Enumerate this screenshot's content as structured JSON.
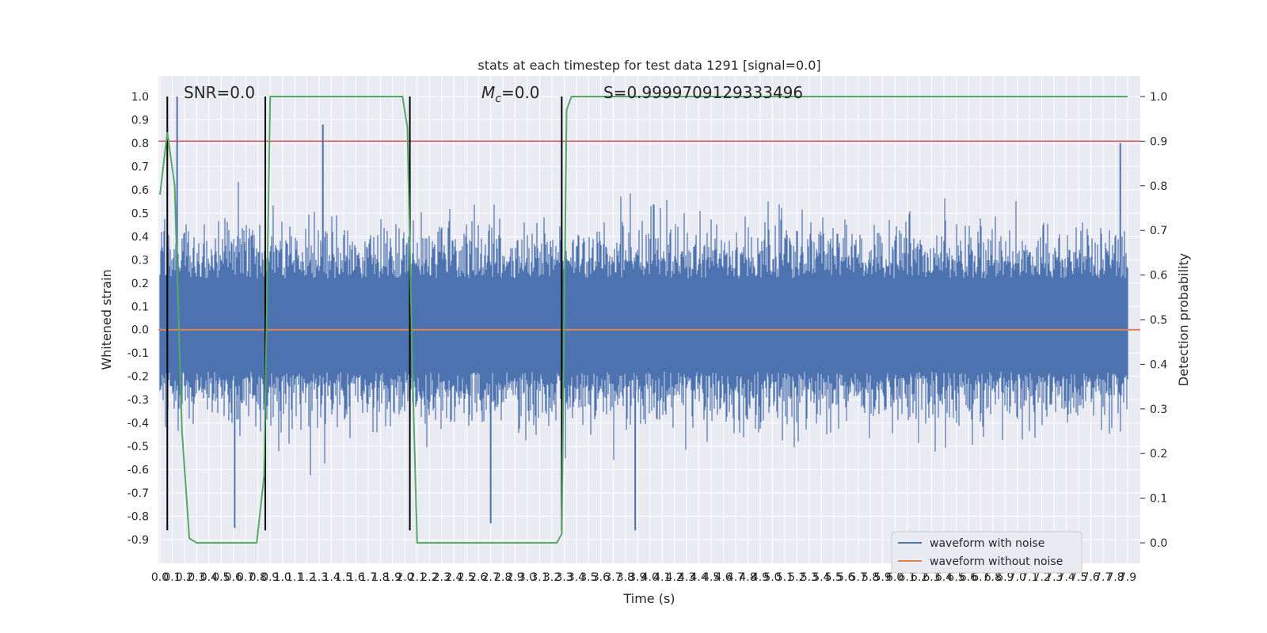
{
  "chart_data": {
    "type": "line",
    "title": "stats at each timestep for test data 1291 [signal=0.0]",
    "xlabel": "Time (s)",
    "ylabel": "Whitened strain",
    "y2label": "Detection probability",
    "xlim": [
      0.0,
      7.9
    ],
    "ylim": [
      -0.95,
      1.05
    ],
    "y2lim": [
      -0.05,
      1.03
    ],
    "x_ticks": [
      "0.0",
      "0.1",
      "0.2",
      "0.3",
      "0.4",
      "0.5",
      "0.6",
      "0.7",
      "0.8",
      "0.9",
      "1.0",
      "1.1",
      "1.2",
      "1.3",
      "1.4",
      "1.5",
      "1.6",
      "1.7",
      "1.8",
      "1.9",
      "2.0",
      "2.1",
      "2.2",
      "2.3",
      "2.4",
      "2.5",
      "2.6",
      "2.7",
      "2.8",
      "2.9",
      "3.0",
      "3.1",
      "3.2",
      "3.3",
      "3.4",
      "3.5",
      "3.6",
      "3.7",
      "3.8",
      "3.9",
      "4.0",
      "4.1",
      "4.2",
      "4.3",
      "4.4",
      "4.5",
      "4.6",
      "4.7",
      "4.8",
      "4.9",
      "5.0",
      "5.1",
      "5.2",
      "5.3",
      "5.4",
      "5.5",
      "5.6",
      "5.7",
      "5.8",
      "5.9",
      "6.0",
      "6.1",
      "6.2",
      "6.3",
      "6.4",
      "6.5",
      "6.6",
      "6.7",
      "6.8",
      "6.9",
      "7.0",
      "7.1",
      "7.2",
      "7.3",
      "7.4",
      "7.5",
      "7.6",
      "7.7",
      "7.8",
      "7.9"
    ],
    "y_ticks": [
      "1.0",
      "0.9",
      "0.8",
      "0.7",
      "0.6",
      "0.5",
      "0.4",
      "0.3",
      "0.2",
      "0.1",
      "0.0",
      "-0.1",
      "-0.2",
      "-0.3",
      "-0.4",
      "-0.5",
      "-0.6",
      "-0.7",
      "-0.8",
      "-0.9"
    ],
    "y2_ticks": [
      "1.0",
      "0.9",
      "0.8",
      "0.7",
      "0.6",
      "0.5",
      "0.4",
      "0.3",
      "0.2",
      "0.1",
      "0.0"
    ],
    "annotations": [
      {
        "text": "SNR=0.0",
        "x": 0.2
      },
      {
        "text": "=0.0",
        "symbol": "M",
        "subscript": "c",
        "x": 2.6
      },
      {
        "text": "S=0.9999709129333496",
        "x": 3.6
      }
    ],
    "series": [
      {
        "name": "waveform with noise",
        "color": "#4c72b0",
        "axis": "left",
        "description": "dense noise trace between about -0.55 and 0.6 with spikes to 1.0 and -0.86",
        "spikes": [
          {
            "x": 0.14,
            "y": 1.0
          },
          {
            "x": 1.33,
            "y": 0.88
          },
          {
            "x": 0.61,
            "y": -0.85
          },
          {
            "x": 3.88,
            "y": -0.86
          },
          {
            "x": 7.84,
            "y": 0.8
          },
          {
            "x": 2.7,
            "y": -0.83
          }
        ]
      },
      {
        "name": "waveform without noise",
        "color": "#dd8452",
        "axis": "left",
        "values_constant": 0.0
      },
      {
        "color": "#55a868",
        "axis": "right",
        "x": [
          0.0,
          0.06,
          0.12,
          0.18,
          0.24,
          0.3,
          0.4,
          0.6,
          0.79,
          0.85,
          0.9,
          0.95,
          1.0,
          1.5,
          1.98,
          2.02,
          2.06,
          2.1,
          2.2,
          2.6,
          3.0,
          3.24,
          3.28,
          3.32,
          3.36,
          3.4,
          4.0,
          7.9
        ],
        "values": [
          0.78,
          0.92,
          0.8,
          0.25,
          0.01,
          0.0,
          0.0,
          0.0,
          0.0,
          0.15,
          1.0,
          1.0,
          1.0,
          1.0,
          1.0,
          0.93,
          0.4,
          0.0,
          0.0,
          0.0,
          0.0,
          0.0,
          0.02,
          0.97,
          1.0,
          1.0,
          1.0,
          1.0
        ]
      },
      {
        "color": "#c44e52",
        "axis": "right",
        "values_constant": 0.9
      }
    ],
    "vlines": [
      0.06,
      0.86,
      2.04,
      3.28
    ],
    "grid": true,
    "legend": {
      "location": "lower right",
      "entries": [
        "waveform with noise",
        "waveform without noise"
      ]
    }
  }
}
